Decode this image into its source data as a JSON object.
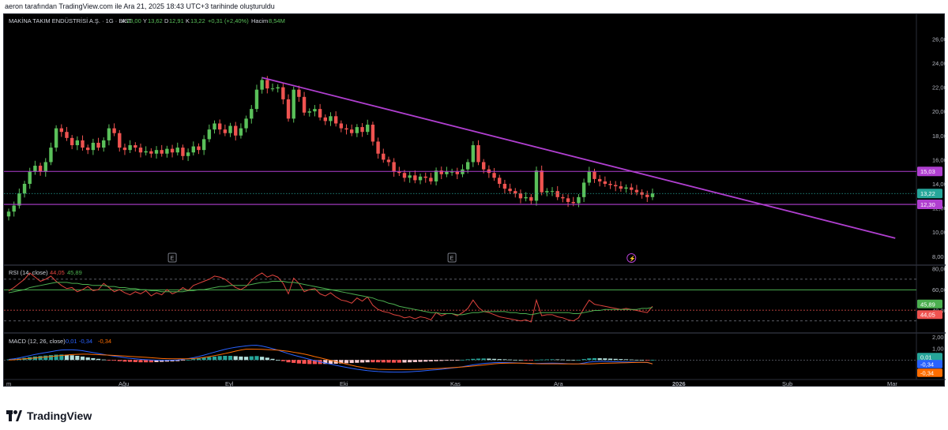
{
  "header": {
    "text": "aeron tarafından TradingView.com ile Ara 21, 2025 18:43 UTC+3 tarihinde oluşturuldu"
  },
  "legend": {
    "symbol": "MAKİNA TAKIM ENDÜSTRİSİ A.Ş. · 1G · BIST",
    "open_label": "A",
    "open": "13,00",
    "high_label": "Y",
    "high": "13,62",
    "low_label": "D",
    "low": "12,91",
    "close_label": "K",
    "close": "13,22",
    "change": "+0,31 (+2,40%)",
    "volume_label": "Hacim",
    "volume": "8,54M"
  },
  "footer": {
    "brand": "TradingView"
  },
  "colors": {
    "up": "#26a69a",
    "up_bright": "#5ac05a",
    "down": "#ef5350",
    "trendline": "#b03fd0",
    "level": "#b03fd0",
    "rsi": "#e0443e",
    "rsi_ma": "#4caf50",
    "macd": "#2962ff",
    "signal": "#ff6d00"
  },
  "chart_data": [
    {
      "type": "candlestick",
      "panel": "price",
      "x_ticks": [
        "m",
        "Ağu",
        "Eyl",
        "Eki",
        "Kas",
        "Ara",
        "2026",
        "Şub",
        "Mar"
      ],
      "y_ticks": [
        "26,00",
        "24,00",
        "22,00",
        "20,00",
        "18,00",
        "16,00",
        "14,00",
        "12,00",
        "10,00",
        "8,00"
      ],
      "ylim": [
        7.4,
        27.2
      ],
      "closes": [
        11.7,
        12.2,
        13.2,
        14.0,
        15.0,
        15.5,
        15.0,
        15.8,
        17.0,
        18.6,
        18.3,
        17.8,
        17.2,
        17.6,
        17.0,
        16.8,
        17.4,
        17.0,
        17.6,
        18.6,
        18.2,
        17.0,
        16.8,
        17.2,
        17.0,
        16.6,
        16.7,
        16.5,
        16.8,
        16.5,
        16.9,
        16.6,
        17.0,
        16.3,
        16.6,
        17.1,
        16.8,
        17.7,
        18.5,
        19.0,
        18.5,
        18.2,
        18.8,
        18.0,
        18.6,
        19.4,
        20.2,
        21.8,
        22.6,
        21.9,
        21.9,
        22.0,
        21.0,
        19.4,
        21.8,
        21.2,
        19.9,
        20.0,
        20.2,
        19.5,
        19.2,
        19.6,
        19.0,
        18.6,
        18.5,
        18.2,
        18.7,
        18.3,
        18.9,
        17.5,
        16.5,
        16.0,
        15.8,
        15.0,
        14.9,
        14.5,
        14.7,
        14.3,
        14.6,
        14.5,
        14.2,
        15.1,
        14.8,
        15.0,
        15.0,
        14.8,
        15.2,
        15.8,
        17.2,
        15.8,
        15.2,
        14.9,
        14.5,
        14.0,
        13.6,
        13.4,
        13.2,
        12.8,
        12.9,
        12.6,
        15.1,
        13.3,
        13.4,
        13.4,
        12.9,
        12.8,
        12.5,
        12.4,
        12.9,
        14.1,
        15.0,
        14.4,
        14.2,
        14.0,
        13.9,
        13.8,
        13.6,
        13.7,
        13.5,
        13.3,
        13.1,
        12.9,
        13.2
      ],
      "horizontal_levels": [
        {
          "label": "15,03",
          "value": 15.03
        },
        {
          "label": "12,30",
          "value": 12.3
        }
      ],
      "last_price_label": "13,22",
      "trendline": {
        "start": {
          "index": 48,
          "value": 22.8
        },
        "end": {
          "index": 168,
          "value": 9.5
        }
      },
      "event_markers": [
        "E",
        "E",
        "⚡"
      ]
    },
    {
      "type": "line",
      "panel": "rsi",
      "title": "RSI (14, close)",
      "legend_values": [
        "44,05",
        "45,89"
      ],
      "y_ticks": [
        "80,00",
        "60,00",
        "40,00"
      ],
      "ylim": [
        20,
        82
      ],
      "bands": [
        70,
        30
      ],
      "series": [
        {
          "values": [
            59,
            62,
            66,
            70,
            76,
            72,
            68,
            70,
            73,
            68,
            64,
            61,
            62,
            58,
            60,
            63,
            59,
            60,
            66,
            62,
            58,
            60,
            57,
            55,
            58,
            56,
            59,
            54,
            57,
            55,
            60,
            56,
            58,
            62,
            59,
            64,
            66,
            68,
            70,
            73,
            72,
            70,
            66,
            62,
            60,
            63,
            69,
            73,
            76,
            72,
            74,
            72,
            66,
            56,
            71,
            66,
            58,
            60,
            61,
            56,
            54,
            57,
            53,
            50,
            49,
            47,
            52,
            49,
            53,
            45,
            41,
            39,
            38,
            36,
            35,
            33,
            34,
            32,
            34,
            33,
            31,
            38,
            35,
            37,
            37,
            35,
            38,
            42,
            50,
            43,
            39,
            38,
            36,
            34,
            33,
            32,
            31,
            30,
            31,
            29,
            50,
            35,
            36,
            36,
            34,
            33,
            31,
            30,
            33,
            42,
            50,
            46,
            45,
            44,
            43,
            42,
            41,
            42,
            41,
            40,
            39,
            38,
            44
          ]
        },
        {
          "values": [
            57,
            58,
            59,
            60,
            62,
            63,
            64,
            65,
            66,
            67,
            67,
            67,
            66,
            66,
            65,
            65,
            64,
            64,
            64,
            63,
            63,
            62,
            62,
            61,
            61,
            60,
            60,
            59,
            59,
            58,
            58,
            58,
            58,
            58,
            59,
            59,
            60,
            60,
            61,
            62,
            63,
            63,
            64,
            64,
            64,
            64,
            65,
            66,
            67,
            67,
            68,
            68,
            68,
            67,
            67,
            66,
            65,
            64,
            63,
            62,
            61,
            60,
            59,
            58,
            57,
            56,
            55,
            54,
            53,
            52,
            50,
            49,
            47,
            46,
            44,
            43,
            42,
            41,
            40,
            39,
            38,
            38,
            37,
            37,
            37,
            36,
            36,
            37,
            38,
            38,
            39,
            39,
            39,
            39,
            39,
            38,
            38,
            37,
            37,
            36,
            37,
            38,
            38,
            38,
            38,
            38,
            38,
            37,
            37,
            38,
            39,
            40,
            40,
            41,
            41,
            41,
            41,
            41,
            41,
            41,
            42,
            42,
            43
          ]
        }
      ]
    },
    {
      "type": "bar+line",
      "panel": "macd",
      "title": "MACD (12, 26, close)",
      "legend_values": [
        "0,01",
        "-0,34",
        "-0,34"
      ],
      "y_ticks": [
        "2,00",
        "1,00",
        "0,01",
        "-0,34"
      ],
      "ylim": [
        -1.55,
        2.2
      ],
      "histogram": [
        0.05,
        0.08,
        0.12,
        0.18,
        0.25,
        0.3,
        0.34,
        0.38,
        0.42,
        0.46,
        0.47,
        0.45,
        0.41,
        0.36,
        0.3,
        0.22,
        0.16,
        0.1,
        0.04,
        -0.02,
        -0.06,
        -0.1,
        -0.14,
        -0.16,
        -0.18,
        -0.2,
        -0.2,
        -0.2,
        -0.18,
        -0.16,
        -0.14,
        -0.12,
        -0.1,
        -0.05,
        0.02,
        0.08,
        0.14,
        0.2,
        0.26,
        0.3,
        0.34,
        0.36,
        0.36,
        0.33,
        0.3,
        0.28,
        0.32,
        0.34,
        0.28,
        0.2,
        0.1,
        0.0,
        -0.1,
        -0.2,
        -0.25,
        -0.3,
        -0.33,
        -0.35,
        -0.35,
        -0.35,
        -0.34,
        -0.33,
        -0.32,
        -0.3,
        -0.28,
        -0.26,
        -0.24,
        -0.22,
        -0.2,
        -0.2,
        -0.2,
        -0.21,
        -0.22,
        -0.23,
        -0.23,
        -0.22,
        -0.2,
        -0.18,
        -0.16,
        -0.14,
        -0.12,
        -0.1,
        -0.08,
        -0.06,
        -0.04,
        -0.02,
        0.02,
        0.06,
        0.1,
        0.12,
        0.13,
        0.12,
        0.1,
        0.08,
        0.06,
        0.04,
        0.02,
        0.0,
        -0.02,
        -0.04,
        0.02,
        0.04,
        0.05,
        0.06,
        0.05,
        0.04,
        0.02,
        0.0,
        0.01,
        0.08,
        0.14,
        0.16,
        0.15,
        0.14,
        0.12,
        0.1,
        0.08,
        0.06,
        0.04,
        0.02,
        0.0,
        -0.02,
        0.01
      ],
      "series": [
        {
          "values": [
            0.05,
            0.1,
            0.18,
            0.28,
            0.38,
            0.48,
            0.56,
            0.64,
            0.72,
            0.8,
            0.86,
            0.88,
            0.88,
            0.85,
            0.8,
            0.72,
            0.64,
            0.56,
            0.48,
            0.4,
            0.33,
            0.27,
            0.2,
            0.15,
            0.1,
            0.06,
            0.03,
            0.0,
            -0.02,
            -0.03,
            -0.03,
            -0.02,
            0.0,
            0.05,
            0.12,
            0.2,
            0.3,
            0.42,
            0.55,
            0.68,
            0.8,
            0.92,
            1.02,
            1.1,
            1.16,
            1.22,
            1.26,
            1.27,
            1.2,
            1.1,
            0.98,
            0.85,
            0.7,
            0.55,
            0.42,
            0.3,
            0.18,
            0.06,
            -0.06,
            -0.16,
            -0.26,
            -0.36,
            -0.46,
            -0.55,
            -0.64,
            -0.72,
            -0.8,
            -0.86,
            -0.92,
            -0.96,
            -1.0,
            -1.02,
            -1.04,
            -1.05,
            -1.05,
            -1.04,
            -1.02,
            -0.99,
            -0.96,
            -0.92,
            -0.88,
            -0.84,
            -0.8,
            -0.75,
            -0.7,
            -0.65,
            -0.58,
            -0.5,
            -0.42,
            -0.36,
            -0.3,
            -0.26,
            -0.23,
            -0.22,
            -0.22,
            -0.23,
            -0.25,
            -0.27,
            -0.3,
            -0.33,
            -0.3,
            -0.29,
            -0.28,
            -0.27,
            -0.28,
            -0.3,
            -0.32,
            -0.34,
            -0.33,
            -0.26,
            -0.18,
            -0.14,
            -0.13,
            -0.13,
            -0.14,
            -0.15,
            -0.16,
            -0.17,
            -0.18,
            -0.19,
            -0.2,
            -0.22,
            -0.33
          ]
        },
        {
          "values": [
            0.0,
            0.02,
            0.06,
            0.1,
            0.13,
            0.18,
            0.22,
            0.26,
            0.3,
            0.34,
            0.39,
            0.43,
            0.47,
            0.49,
            0.5,
            0.5,
            0.48,
            0.46,
            0.44,
            0.42,
            0.39,
            0.37,
            0.34,
            0.31,
            0.28,
            0.26,
            0.23,
            0.2,
            0.16,
            0.13,
            0.11,
            0.1,
            0.1,
            0.1,
            0.1,
            0.12,
            0.16,
            0.22,
            0.29,
            0.38,
            0.46,
            0.56,
            0.66,
            0.77,
            0.86,
            0.94,
            0.94,
            0.93,
            0.92,
            0.9,
            0.88,
            0.85,
            0.8,
            0.75,
            0.67,
            0.6,
            0.51,
            0.41,
            0.29,
            0.19,
            0.08,
            -0.03,
            -0.14,
            -0.25,
            -0.36,
            -0.46,
            -0.56,
            -0.64,
            -0.72,
            -0.76,
            -0.8,
            -0.81,
            -0.82,
            -0.82,
            -0.82,
            -0.82,
            -0.82,
            -0.81,
            -0.8,
            -0.78,
            -0.76,
            -0.74,
            -0.72,
            -0.69,
            -0.66,
            -0.63,
            -0.6,
            -0.56,
            -0.52,
            -0.48,
            -0.43,
            -0.38,
            -0.33,
            -0.3,
            -0.28,
            -0.27,
            -0.27,
            -0.27,
            -0.28,
            -0.29,
            -0.32,
            -0.33,
            -0.33,
            -0.33,
            -0.33,
            -0.34,
            -0.34,
            -0.34,
            -0.34,
            -0.34,
            -0.34,
            -0.32,
            -0.3,
            -0.28,
            -0.27,
            -0.26,
            -0.25,
            -0.24,
            -0.22,
            -0.21,
            -0.2,
            -0.2,
            -0.34
          ]
        }
      ]
    }
  ]
}
